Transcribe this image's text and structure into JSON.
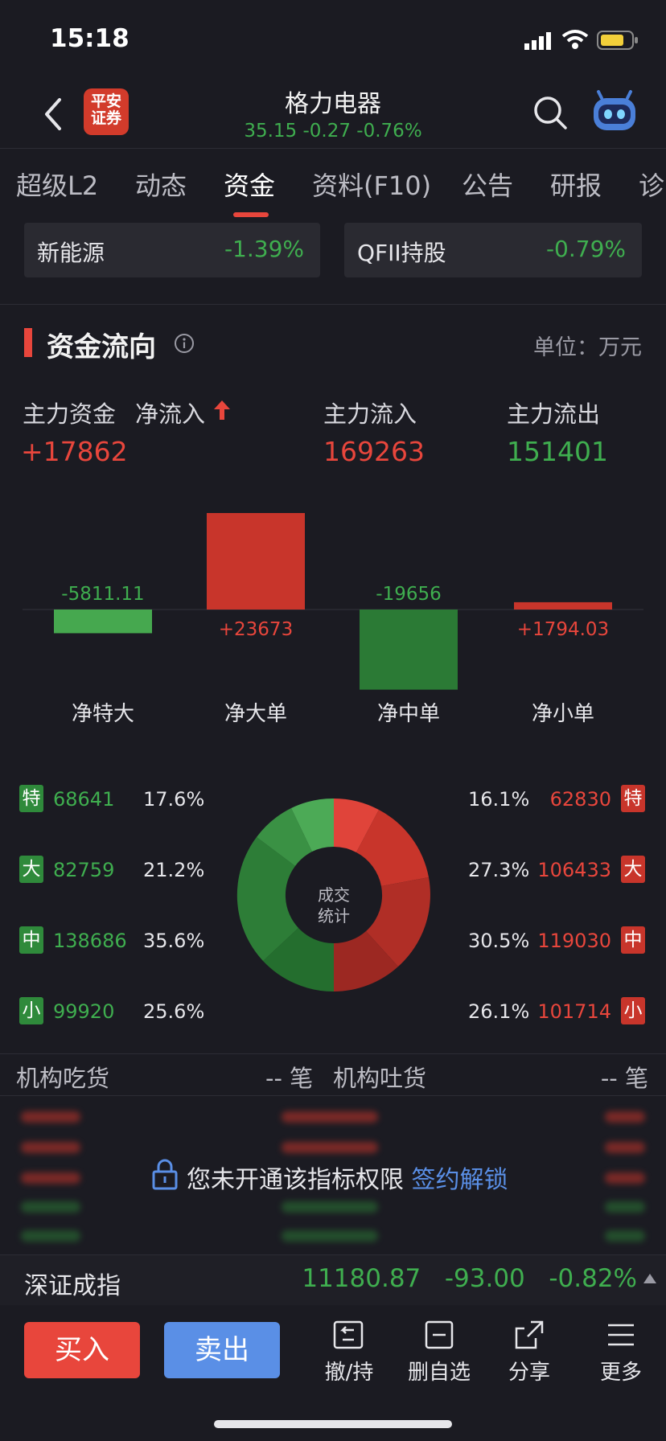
{
  "status": {
    "time": "15:18"
  },
  "header": {
    "stock_name": "格力电器",
    "price_line": "35.15 -0.27 -0.76%",
    "logo_text": "平安证券",
    "logo_line1": "平安",
    "logo_line2": "证券"
  },
  "tabs": [
    "超级L2",
    "动态",
    "资金",
    "资料(F10)",
    "公告",
    "研报",
    "诊"
  ],
  "concepts": [
    {
      "name": "新能源",
      "change": "-1.39%"
    },
    {
      "name": "QFII持股",
      "change": "-0.79%"
    }
  ],
  "fund_flow": {
    "title": "资金流向",
    "unit": "单位：万元",
    "main_label": "主力资金",
    "net_label": "净流入",
    "net_value": "+17862",
    "inflow_label": "主力流入",
    "inflow_value": "169263",
    "outflow_label": "主力流出",
    "outflow_value": "151401"
  },
  "chart_data": {
    "type": "bar",
    "categories": [
      "净特大",
      "净大单",
      "净中单",
      "净小单"
    ],
    "values": [
      -5811.11,
      23673,
      -19656,
      1794.03
    ],
    "value_labels": [
      "-5811.11",
      "+23673",
      "-19656",
      "+1794.03"
    ],
    "colors": [
      "#46a84f",
      "#c8352b",
      "#2b7a35",
      "#c8352b"
    ]
  },
  "trade_stats": {
    "center_label_1": "成交",
    "center_label_2": "统计",
    "left": [
      {
        "badge": "特",
        "value": "68641",
        "pct": "17.6%"
      },
      {
        "badge": "大",
        "value": "82759",
        "pct": "21.2%"
      },
      {
        "badge": "中",
        "value": "138686",
        "pct": "35.6%"
      },
      {
        "badge": "小",
        "value": "99920",
        "pct": "25.6%"
      }
    ],
    "right": [
      {
        "badge": "特",
        "value": "62830",
        "pct": "16.1%"
      },
      {
        "badge": "大",
        "value": "106433",
        "pct": "27.3%"
      },
      {
        "badge": "中",
        "value": "119030",
        "pct": "30.5%"
      },
      {
        "badge": "小",
        "value": "101714",
        "pct": "26.1%"
      }
    ]
  },
  "institution": {
    "buy_label": "机构吃货",
    "buy_count": "-- 笔",
    "sell_label": "机构吐货",
    "sell_count": "-- 笔",
    "locked_msg": "您未开通该指标权限",
    "unlock_link": "签约解锁"
  },
  "index": {
    "name": "深证成指",
    "value": "11180.87",
    "change": "-93.00",
    "pct": "-0.82%"
  },
  "toolbar": {
    "buy": "买入",
    "sell": "卖出",
    "tools": [
      "撤/持",
      "删自选",
      "分享",
      "更多"
    ]
  }
}
